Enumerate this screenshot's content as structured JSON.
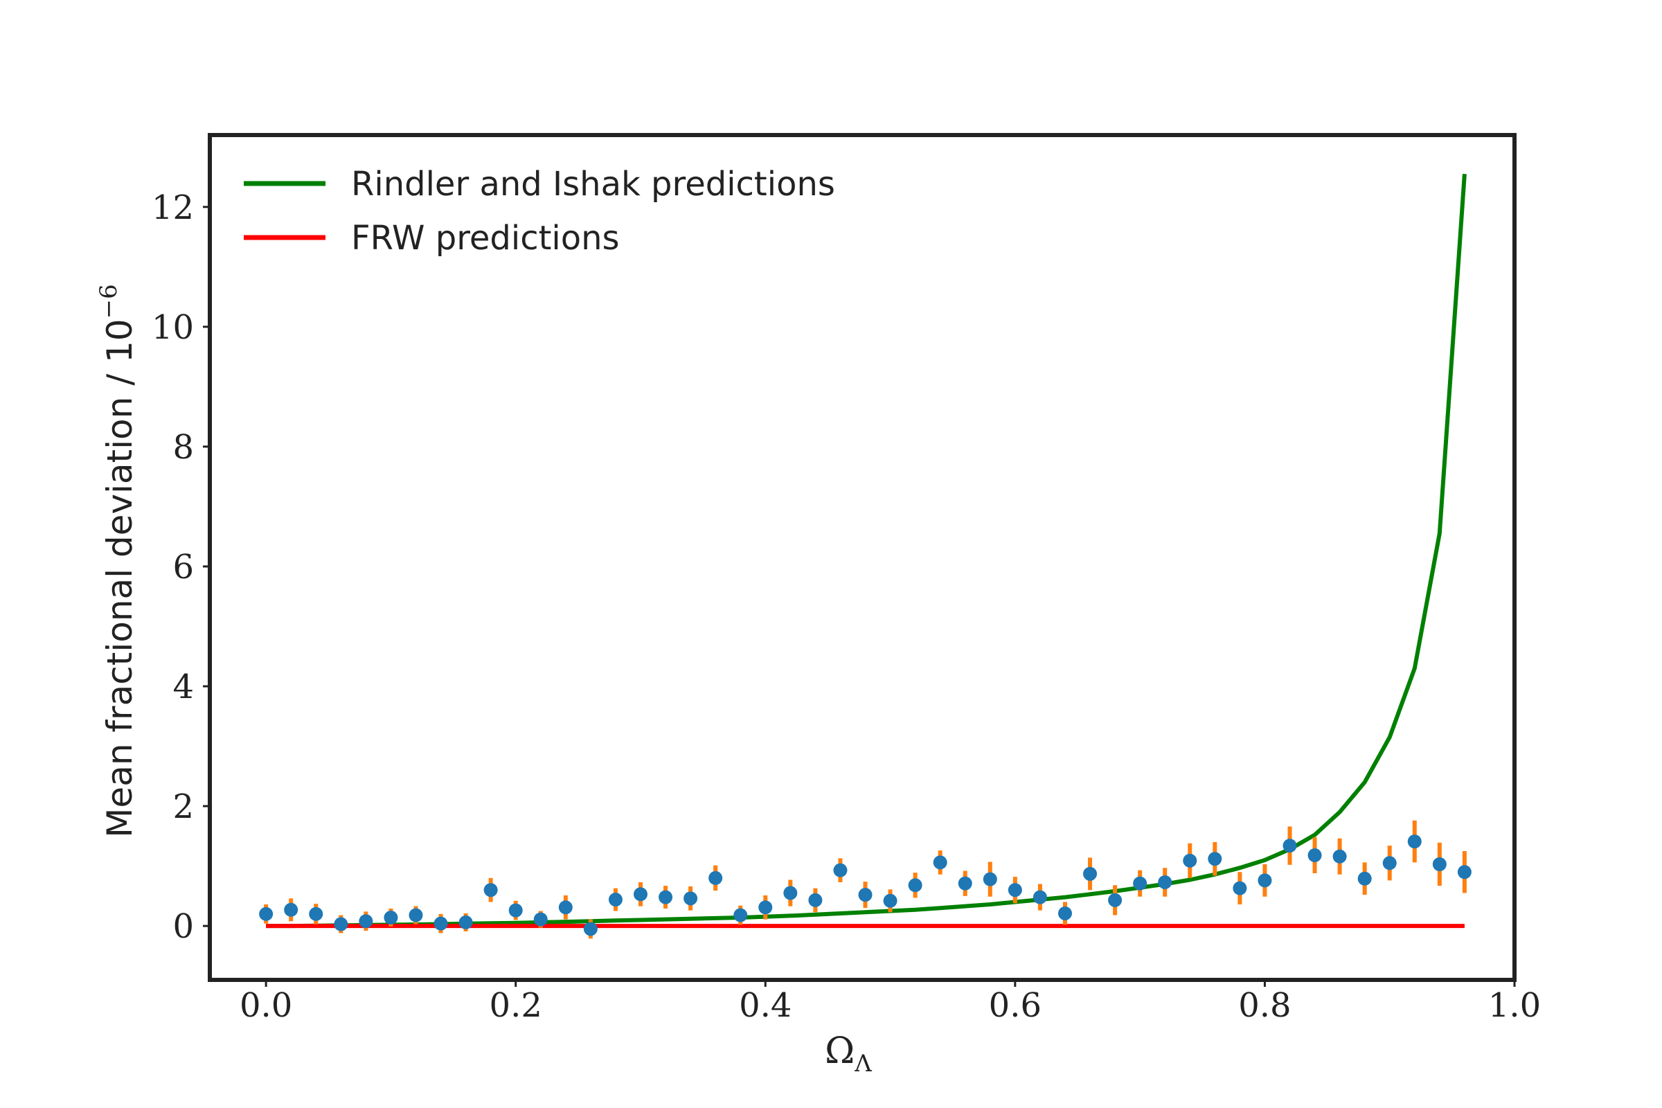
{
  "chart_data": {
    "type": "line",
    "xlabel": {
      "base": "Ω",
      "sub": "Λ"
    },
    "ylabel": {
      "text": "Mean fractional deviation / 10",
      "sup": "−6"
    },
    "xlim": [
      -0.045,
      1.0
    ],
    "ylim": [
      -0.9,
      13.2
    ],
    "grid": false,
    "legend_position": "top-left",
    "x_ticks": [
      {
        "value": 0.0,
        "label": "0.0"
      },
      {
        "value": 0.2,
        "label": "0.2"
      },
      {
        "value": 0.4,
        "label": "0.4"
      },
      {
        "value": 0.6,
        "label": "0.6"
      },
      {
        "value": 0.8,
        "label": "0.8"
      },
      {
        "value": 1.0,
        "label": "1.0"
      }
    ],
    "y_ticks": [
      {
        "value": 0,
        "label": "0"
      },
      {
        "value": 2,
        "label": "2"
      },
      {
        "value": 4,
        "label": "4"
      },
      {
        "value": 6,
        "label": "6"
      },
      {
        "value": 8,
        "label": "8"
      },
      {
        "value": 10,
        "label": "10"
      },
      {
        "value": 12,
        "label": "12"
      }
    ],
    "series": [
      {
        "name": "Rindler and Ishak predictions",
        "kind": "line",
        "color": "#008000",
        "x": [
          0.0,
          0.02,
          0.04,
          0.06,
          0.08,
          0.1,
          0.12,
          0.14,
          0.16,
          0.18,
          0.2,
          0.22,
          0.24,
          0.26,
          0.28,
          0.3,
          0.32,
          0.34,
          0.36,
          0.38,
          0.4,
          0.42,
          0.44,
          0.46,
          0.48,
          0.5,
          0.52,
          0.54,
          0.56,
          0.58,
          0.6,
          0.62,
          0.64,
          0.66,
          0.68,
          0.7,
          0.72,
          0.74,
          0.76,
          0.78,
          0.8,
          0.82,
          0.84,
          0.86,
          0.88,
          0.9,
          0.92,
          0.94,
          0.96
        ],
        "y": [
          0.0,
          0.0,
          0.005,
          0.01,
          0.015,
          0.02,
          0.025,
          0.03,
          0.04,
          0.045,
          0.05,
          0.06,
          0.07,
          0.08,
          0.09,
          0.1,
          0.11,
          0.12,
          0.13,
          0.14,
          0.155,
          0.17,
          0.19,
          0.21,
          0.23,
          0.25,
          0.27,
          0.3,
          0.33,
          0.36,
          0.4,
          0.44,
          0.48,
          0.53,
          0.58,
          0.64,
          0.7,
          0.77,
          0.86,
          0.97,
          1.1,
          1.28,
          1.52,
          1.9,
          2.4,
          3.15,
          4.3,
          6.55,
          12.55
        ]
      },
      {
        "name": "FRW predictions",
        "kind": "line",
        "color": "#ff0000",
        "x": [
          0.0,
          0.96
        ],
        "y": [
          0.0,
          0.0
        ]
      },
      {
        "kind": "errorbar",
        "marker_color": "#1f77b4",
        "error_color": "#ff7f0e",
        "x": [
          0.0,
          0.02,
          0.04,
          0.06,
          0.08,
          0.1,
          0.12,
          0.14,
          0.16,
          0.18,
          0.2,
          0.22,
          0.24,
          0.26,
          0.28,
          0.3,
          0.32,
          0.34,
          0.36,
          0.38,
          0.4,
          0.42,
          0.44,
          0.46,
          0.48,
          0.5,
          0.52,
          0.54,
          0.56,
          0.58,
          0.6,
          0.62,
          0.64,
          0.66,
          0.68,
          0.7,
          0.72,
          0.74,
          0.76,
          0.78,
          0.8,
          0.82,
          0.84,
          0.86,
          0.88,
          0.9,
          0.92,
          0.94,
          0.96
        ],
        "y": [
          0.2,
          0.27,
          0.2,
          0.03,
          0.08,
          0.14,
          0.18,
          0.04,
          0.06,
          0.6,
          0.26,
          0.11,
          0.31,
          -0.05,
          0.44,
          0.53,
          0.48,
          0.46,
          0.8,
          0.18,
          0.31,
          0.55,
          0.43,
          0.93,
          0.52,
          0.42,
          0.68,
          1.06,
          0.71,
          0.78,
          0.6,
          0.48,
          0.21,
          0.87,
          0.43,
          0.71,
          0.73,
          1.09,
          1.12,
          0.63,
          0.76,
          1.34,
          1.18,
          1.16,
          0.79,
          1.05,
          1.41,
          1.03,
          0.9
        ],
        "yerr": [
          0.16,
          0.19,
          0.17,
          0.15,
          0.16,
          0.15,
          0.15,
          0.16,
          0.15,
          0.2,
          0.16,
          0.14,
          0.2,
          0.16,
          0.19,
          0.2,
          0.19,
          0.2,
          0.21,
          0.16,
          0.2,
          0.22,
          0.2,
          0.2,
          0.22,
          0.19,
          0.21,
          0.2,
          0.21,
          0.29,
          0.22,
          0.22,
          0.19,
          0.27,
          0.25,
          0.22,
          0.24,
          0.29,
          0.28,
          0.27,
          0.27,
          0.32,
          0.3,
          0.3,
          0.27,
          0.29,
          0.35,
          0.36,
          0.35
        ]
      }
    ]
  }
}
